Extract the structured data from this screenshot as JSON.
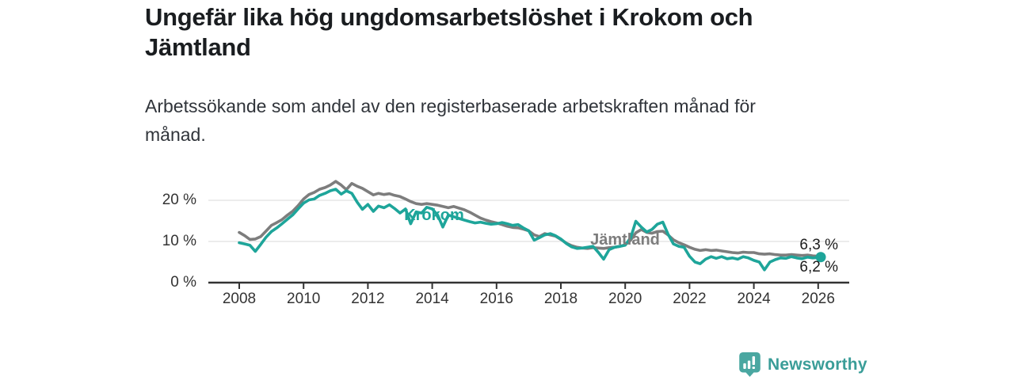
{
  "title": "Ungefär lika hög ungdomsarbetslöshet i Krokom och Jämtland",
  "subtitle": "Arbetssökande som andel av den registerbaserade arbetskraften månad för månad.",
  "branding": {
    "logo_text": "Newsworthy",
    "logo_icon": "bar-chart-speech-bubble-icon",
    "logo_color": "#4aa7a1",
    "text_color": "#3a9d98"
  },
  "chart_data": {
    "type": "line",
    "unit": "percent",
    "grid": "horizontal",
    "legend": "inline-labels",
    "y_axis": {
      "ticks": [
        0,
        10,
        20
      ],
      "tick_labels": [
        "0 %",
        "10 %",
        "20 %"
      ],
      "range": [
        0,
        25.5
      ]
    },
    "x_axis": {
      "ticks": [
        2008,
        2010,
        2012,
        2014,
        2016,
        2018,
        2020,
        2022,
        2024,
        2026
      ],
      "tick_labels": [
        "2008",
        "2010",
        "2012",
        "2014",
        "2016",
        "2018",
        "2020",
        "2022",
        "2024",
        "2026"
      ],
      "range": [
        2007.05,
        2026.95
      ]
    },
    "x": [
      2008.0,
      2008.17,
      2008.33,
      2008.5,
      2008.67,
      2008.83,
      2009.0,
      2009.17,
      2009.33,
      2009.5,
      2009.67,
      2009.83,
      2010.0,
      2010.17,
      2010.33,
      2010.5,
      2010.67,
      2010.83,
      2011.0,
      2011.17,
      2011.33,
      2011.5,
      2011.67,
      2011.83,
      2012.0,
      2012.17,
      2012.33,
      2012.5,
      2012.67,
      2012.83,
      2013.0,
      2013.17,
      2013.33,
      2013.5,
      2013.67,
      2013.83,
      2014.0,
      2014.17,
      2014.33,
      2014.5,
      2014.67,
      2014.83,
      2015.0,
      2015.17,
      2015.33,
      2015.5,
      2015.67,
      2015.83,
      2016.0,
      2016.17,
      2016.33,
      2016.5,
      2016.67,
      2016.83,
      2017.0,
      2017.17,
      2017.33,
      2017.5,
      2017.67,
      2017.83,
      2018.0,
      2018.17,
      2018.33,
      2018.5,
      2018.67,
      2018.83,
      2019.0,
      2019.17,
      2019.33,
      2019.5,
      2019.67,
      2019.83,
      2020.0,
      2020.17,
      2020.33,
      2020.5,
      2020.67,
      2020.83,
      2021.0,
      2021.17,
      2021.33,
      2021.5,
      2021.67,
      2021.83,
      2022.0,
      2022.17,
      2022.33,
      2022.5,
      2022.67,
      2022.83,
      2023.0,
      2023.17,
      2023.33,
      2023.5,
      2023.67,
      2023.83,
      2024.0,
      2024.17,
      2024.33,
      2024.5,
      2024.67,
      2024.83,
      2025.0,
      2025.17,
      2025.33,
      2025.5,
      2025.67,
      2025.83,
      2026.0,
      2026.08
    ],
    "series": [
      {
        "key": "jamtland",
        "name": "Jämtland",
        "color": "#7d7d7d",
        "end_label": "6,3 %",
        "end_value": 6.3,
        "values": [
          12.2,
          11.4,
          10.5,
          10.6,
          11.2,
          12.5,
          13.9,
          14.6,
          15.3,
          16.4,
          17.4,
          18.7,
          20.3,
          21.4,
          21.9,
          22.7,
          23.1,
          23.7,
          24.6,
          23.7,
          22.6,
          24.1,
          23.4,
          22.9,
          22.1,
          21.3,
          21.7,
          21.4,
          21.6,
          21.2,
          20.9,
          20.3,
          19.7,
          19.2,
          19.0,
          19.2,
          19.0,
          18.8,
          18.5,
          18.2,
          18.5,
          18.1,
          17.7,
          17.1,
          16.4,
          15.7,
          15.2,
          14.8,
          14.5,
          14.1,
          13.7,
          13.4,
          13.3,
          13.0,
          12.6,
          11.6,
          11.2,
          11.9,
          11.6,
          11.3,
          10.5,
          9.6,
          9.0,
          8.6,
          8.4,
          8.3,
          8.5,
          8.4,
          8.3,
          8.5,
          8.6,
          8.8,
          9.2,
          10.3,
          12.1,
          12.9,
          12.2,
          12.0,
          12.4,
          12.5,
          11.6,
          10.4,
          9.7,
          9.2,
          8.6,
          8.1,
          7.8,
          8.0,
          7.8,
          7.9,
          7.7,
          7.5,
          7.3,
          7.2,
          7.4,
          7.3,
          7.3,
          7.0,
          6.9,
          7.0,
          6.8,
          6.7,
          6.7,
          6.8,
          6.7,
          6.6,
          6.7,
          6.5,
          6.4,
          6.3
        ]
      },
      {
        "key": "krokom",
        "name": "Krokom",
        "color": "#1ea59a",
        "end_label": "6,2 %",
        "end_value": 6.2,
        "values": [
          9.7,
          9.4,
          9.1,
          7.6,
          9.3,
          11.0,
          12.4,
          13.3,
          14.3,
          15.4,
          16.5,
          17.9,
          19.3,
          20.1,
          20.3,
          21.2,
          21.7,
          22.3,
          22.7,
          21.5,
          22.3,
          21.7,
          19.5,
          17.8,
          19.0,
          17.3,
          18.6,
          18.2,
          18.9,
          18.0,
          16.9,
          17.9,
          14.3,
          17.2,
          16.9,
          18.3,
          17.9,
          16.4,
          13.5,
          16.4,
          16.0,
          15.6,
          15.2,
          14.8,
          14.5,
          14.7,
          14.4,
          14.2,
          14.3,
          14.6,
          14.3,
          13.9,
          14.1,
          13.3,
          12.6,
          10.3,
          10.9,
          11.6,
          11.9,
          11.4,
          10.6,
          9.5,
          8.7,
          8.3,
          8.4,
          8.6,
          8.8,
          7.3,
          5.7,
          8.0,
          8.6,
          8.8,
          9.1,
          10.9,
          14.9,
          13.5,
          12.3,
          12.9,
          14.2,
          14.7,
          11.8,
          9.4,
          8.8,
          8.6,
          6.4,
          5.0,
          4.6,
          5.7,
          6.3,
          5.9,
          6.3,
          5.8,
          6.0,
          5.7,
          6.3,
          6.0,
          5.4,
          5.0,
          3.1,
          5.0,
          5.6,
          6.0,
          5.9,
          6.3,
          6.0,
          5.8,
          6.2,
          6.0,
          6.1,
          6.2
        ]
      }
    ]
  }
}
